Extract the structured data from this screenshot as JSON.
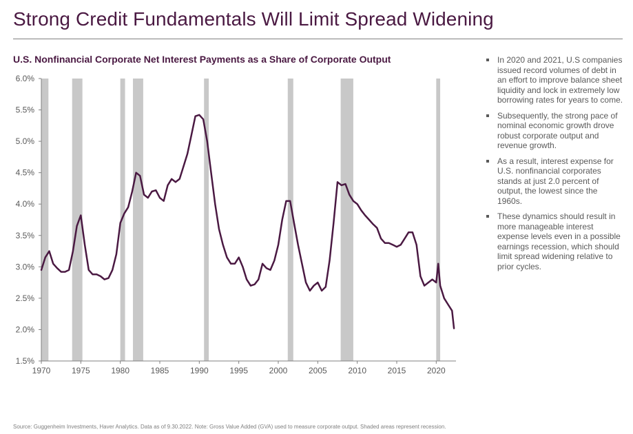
{
  "page": {
    "title": "Strong Credit Fundamentals Will Limit Spread Widening",
    "footnote": "Source: Guggenheim Investments, Haver Analytics. Data as of 9.30.2022. Note: Gross Value Added (GVA) used to measure corporate output. Shaded areas represent recession.",
    "bullets": [
      "In 2020 and 2021, U.S companies issued record volumes of debt in an effort to improve balance sheet liquidity and lock in extremely low borrowing rates for years to come.",
      "Subsequently, the strong pace of nominal economic growth drove robust corporate output and revenue growth.",
      "As a result, interest expense for U.S. nonfinancial corporates stands at just 2.0 percent of output, the lowest since the 1960s.",
      "These dynamics should result in more manageable interest expense levels even in a possible earnings recession, which should limit spread widening relative to prior cycles."
    ]
  },
  "colors": {
    "title": "#4a1942",
    "line": "#4a1942",
    "recession": "#c8c8c8",
    "axis": "#7f7f7f",
    "text": "#595959"
  },
  "chart_data": {
    "type": "line",
    "title": "U.S. Nonfinancial Corporate Net Interest Payments as a Share of Corporate Output",
    "xlabel": "",
    "ylabel": "",
    "xlim": [
      1970,
      2022.5
    ],
    "ylim": [
      1.5,
      6.0
    ],
    "x_ticks": [
      1970,
      1975,
      1980,
      1985,
      1990,
      1995,
      2000,
      2005,
      2010,
      2015,
      2020
    ],
    "x_tick_labels": [
      "1970",
      "1975",
      "1980",
      "1985",
      "1990",
      "1995",
      "2000",
      "2005",
      "2010",
      "2015",
      "2020"
    ],
    "y_ticks": [
      1.5,
      2.0,
      2.5,
      3.0,
      3.5,
      4.0,
      4.5,
      5.0,
      5.5,
      6.0
    ],
    "y_tick_labels": [
      "1.5%",
      "2.0%",
      "2.5%",
      "3.0%",
      "3.5%",
      "4.0%",
      "4.5%",
      "5.0%",
      "5.5%",
      "6.0%"
    ],
    "grid": false,
    "recessions": [
      [
        1970.0,
        1970.9
      ],
      [
        1973.9,
        1975.2
      ],
      [
        1980.0,
        1980.6
      ],
      [
        1981.6,
        1982.9
      ],
      [
        1990.6,
        1991.2
      ],
      [
        2001.2,
        2001.9
      ],
      [
        2007.9,
        2009.5
      ],
      [
        2020.0,
        2020.5
      ]
    ],
    "series": [
      {
        "name": "",
        "x": [
          1970.0,
          1970.5,
          1971.0,
          1971.5,
          1972.0,
          1972.5,
          1973.0,
          1973.5,
          1974.0,
          1974.5,
          1975.0,
          1975.5,
          1976.0,
          1976.5,
          1977.0,
          1977.5,
          1978.0,
          1978.5,
          1979.0,
          1979.5,
          1980.0,
          1980.5,
          1981.0,
          1981.5,
          1982.0,
          1982.5,
          1983.0,
          1983.5,
          1984.0,
          1984.5,
          1985.0,
          1985.5,
          1986.0,
          1986.5,
          1987.0,
          1987.5,
          1988.0,
          1988.5,
          1989.0,
          1989.5,
          1990.0,
          1990.5,
          1991.0,
          1991.5,
          1992.0,
          1992.5,
          1993.0,
          1993.5,
          1994.0,
          1994.5,
          1995.0,
          1995.5,
          1996.0,
          1996.5,
          1997.0,
          1997.5,
          1998.0,
          1998.5,
          1999.0,
          1999.5,
          2000.0,
          2000.5,
          2001.0,
          2001.5,
          2002.0,
          2002.5,
          2003.0,
          2003.5,
          2004.0,
          2004.5,
          2005.0,
          2005.5,
          2006.0,
          2006.5,
          2007.0,
          2007.5,
          2008.0,
          2008.5,
          2009.0,
          2009.5,
          2010.0,
          2010.5,
          2011.0,
          2011.5,
          2012.0,
          2012.5,
          2013.0,
          2013.5,
          2014.0,
          2014.5,
          2015.0,
          2015.5,
          2016.0,
          2016.5,
          2017.0,
          2017.5,
          2018.0,
          2018.5,
          2019.0,
          2019.5,
          2020.0,
          2020.25,
          2020.5,
          2021.0,
          2021.5,
          2022.0,
          2022.25
        ],
        "values": [
          2.95,
          3.15,
          3.25,
          3.05,
          2.98,
          2.92,
          2.92,
          2.95,
          3.25,
          3.65,
          3.82,
          3.35,
          2.95,
          2.88,
          2.88,
          2.85,
          2.8,
          2.82,
          2.95,
          3.2,
          3.7,
          3.85,
          3.95,
          4.2,
          4.5,
          4.45,
          4.15,
          4.1,
          4.2,
          4.22,
          4.1,
          4.05,
          4.3,
          4.4,
          4.35,
          4.4,
          4.6,
          4.8,
          5.1,
          5.4,
          5.42,
          5.35,
          5.0,
          4.5,
          4.0,
          3.6,
          3.35,
          3.15,
          3.05,
          3.05,
          3.15,
          3.0,
          2.8,
          2.7,
          2.72,
          2.8,
          3.05,
          2.98,
          2.95,
          3.1,
          3.35,
          3.75,
          4.05,
          4.05,
          3.7,
          3.35,
          3.05,
          2.75,
          2.62,
          2.7,
          2.75,
          2.62,
          2.68,
          3.1,
          3.7,
          4.35,
          4.3,
          4.32,
          4.15,
          4.05,
          4.0,
          3.9,
          3.82,
          3.75,
          3.68,
          3.62,
          3.45,
          3.38,
          3.38,
          3.35,
          3.32,
          3.35,
          3.45,
          3.55,
          3.55,
          3.35,
          2.85,
          2.7,
          2.75,
          2.8,
          2.75,
          3.05,
          2.7,
          2.5,
          2.4,
          2.3,
          2.02
        ]
      }
    ]
  }
}
